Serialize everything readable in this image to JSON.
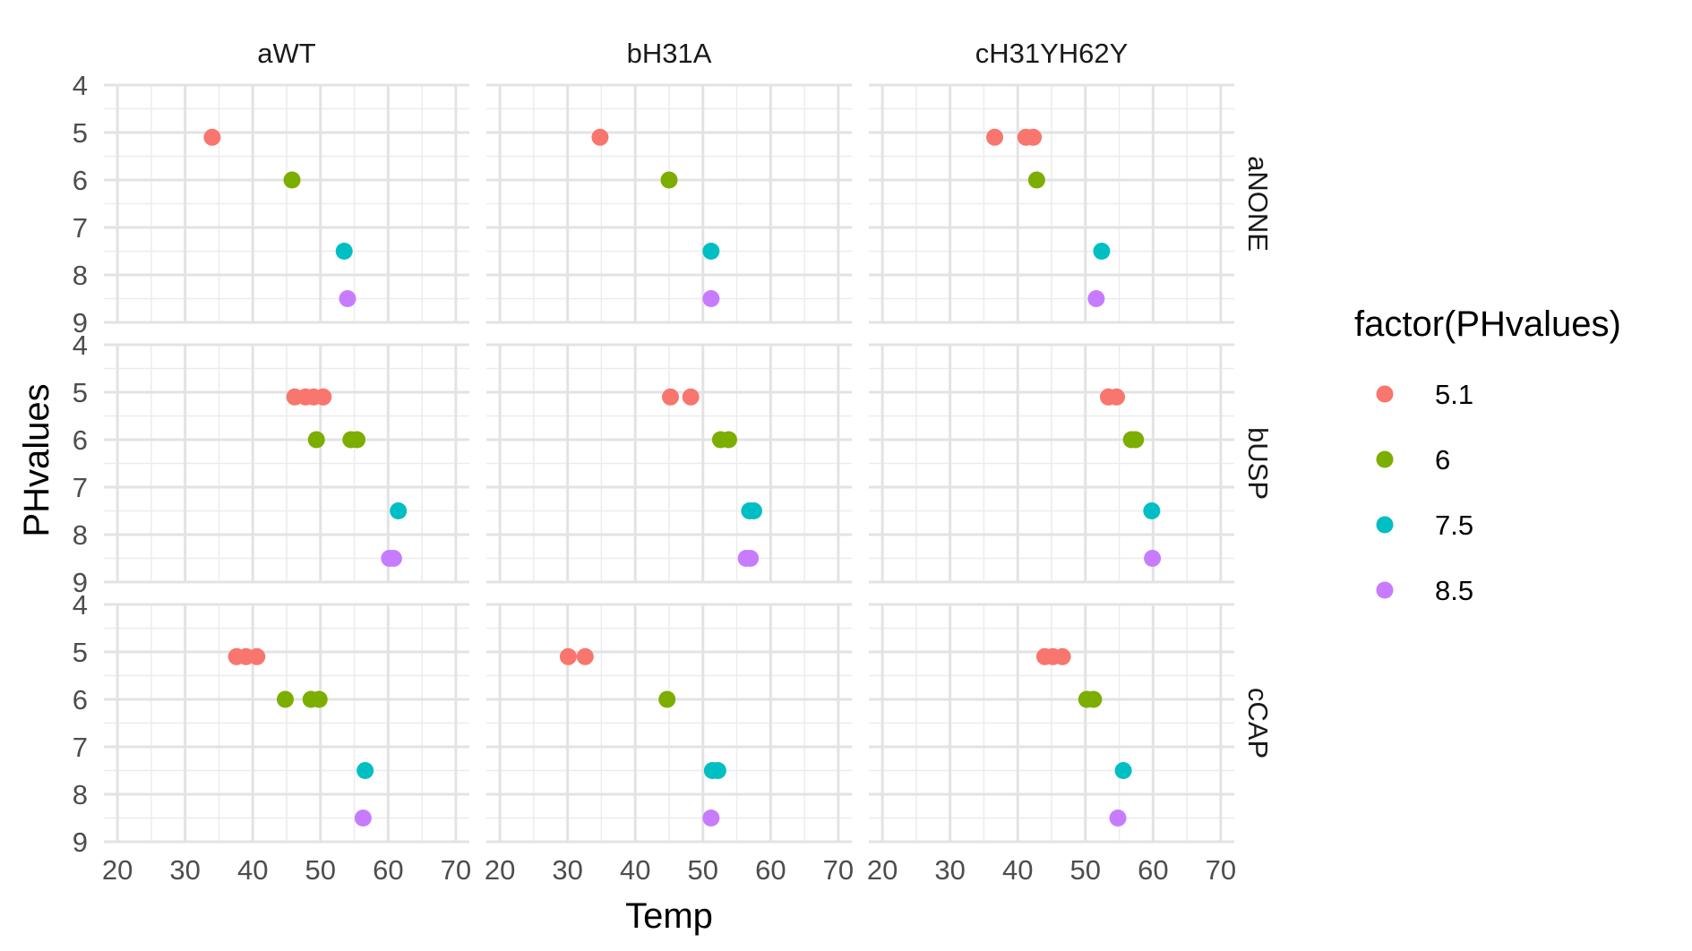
{
  "chart_data": {
    "type": "scatter",
    "facet_columns": [
      "aWT",
      "bH31A",
      "cH31YH62Y"
    ],
    "facet_rows": [
      "aNONE",
      "bUSP",
      "cCAP"
    ],
    "xlabel": "Temp",
    "ylabel": "PHvalues",
    "x_ticks": [
      "20",
      "30",
      "40",
      "50",
      "60",
      "70"
    ],
    "y_ticks": [
      "4",
      "5",
      "6",
      "7",
      "8",
      "9"
    ],
    "xlim": [
      18,
      72
    ],
    "ylim": [
      4,
      9
    ],
    "y_reversed": true,
    "grid": true,
    "legend": {
      "title": "factor(PHvalues)",
      "position": "right",
      "entries": [
        {
          "label": "5.1",
          "color": "#F8766D"
        },
        {
          "label": "6",
          "color": "#7CAE00"
        },
        {
          "label": "7.5",
          "color": "#00BFC4"
        },
        {
          "label": "8.5",
          "color": "#C77CFF"
        }
      ]
    },
    "panels": [
      {
        "col": "aWT",
        "row": "aNONE",
        "points": [
          {
            "x": 34,
            "y": 5.1,
            "group": "5.1"
          },
          {
            "x": 45.8,
            "y": 6,
            "group": "6"
          },
          {
            "x": 53.5,
            "y": 7.5,
            "group": "7.5"
          },
          {
            "x": 54,
            "y": 8.5,
            "group": "8.5"
          }
        ]
      },
      {
        "col": "bH31A",
        "row": "aNONE",
        "points": [
          {
            "x": 34.8,
            "y": 5.1,
            "group": "5.1"
          },
          {
            "x": 45,
            "y": 6,
            "group": "6"
          },
          {
            "x": 51.2,
            "y": 7.5,
            "group": "7.5"
          },
          {
            "x": 51.2,
            "y": 8.5,
            "group": "8.5"
          }
        ]
      },
      {
        "col": "cH31YH62Y",
        "row": "aNONE",
        "points": [
          {
            "x": 36.6,
            "y": 5.1,
            "group": "5.1"
          },
          {
            "x": 41.2,
            "y": 5.1,
            "group": "5.1"
          },
          {
            "x": 42.3,
            "y": 5.1,
            "group": "5.1"
          },
          {
            "x": 42.8,
            "y": 6,
            "group": "6"
          },
          {
            "x": 52.4,
            "y": 7.5,
            "group": "7.5"
          },
          {
            "x": 51.6,
            "y": 8.5,
            "group": "8.5"
          }
        ]
      },
      {
        "col": "aWT",
        "row": "bUSP",
        "points": [
          {
            "x": 46.2,
            "y": 5.1,
            "group": "5.1"
          },
          {
            "x": 47.8,
            "y": 5.1,
            "group": "5.1"
          },
          {
            "x": 49.0,
            "y": 5.1,
            "group": "5.1"
          },
          {
            "x": 50.4,
            "y": 5.1,
            "group": "5.1"
          },
          {
            "x": 49.4,
            "y": 6,
            "group": "6"
          },
          {
            "x": 54.5,
            "y": 6,
            "group": "6"
          },
          {
            "x": 55.4,
            "y": 6,
            "group": "6"
          },
          {
            "x": 61.5,
            "y": 7.5,
            "group": "7.5"
          },
          {
            "x": 60.2,
            "y": 8.5,
            "group": "8.5"
          },
          {
            "x": 60.8,
            "y": 8.5,
            "group": "8.5"
          }
        ]
      },
      {
        "col": "bH31A",
        "row": "bUSP",
        "points": [
          {
            "x": 45.2,
            "y": 5.1,
            "group": "5.1"
          },
          {
            "x": 48.2,
            "y": 5.1,
            "group": "5.1"
          },
          {
            "x": 52.6,
            "y": 6,
            "group": "6"
          },
          {
            "x": 53.8,
            "y": 6,
            "group": "6"
          },
          {
            "x": 56.9,
            "y": 7.5,
            "group": "7.5"
          },
          {
            "x": 57.5,
            "y": 7.5,
            "group": "7.5"
          },
          {
            "x": 56.4,
            "y": 8.5,
            "group": "8.5"
          },
          {
            "x": 57.0,
            "y": 8.5,
            "group": "8.5"
          }
        ]
      },
      {
        "col": "cH31YH62Y",
        "row": "bUSP",
        "points": [
          {
            "x": 53.4,
            "y": 5.1,
            "group": "5.1"
          },
          {
            "x": 54.6,
            "y": 5.1,
            "group": "5.1"
          },
          {
            "x": 56.8,
            "y": 6,
            "group": "6"
          },
          {
            "x": 57.4,
            "y": 6,
            "group": "6"
          },
          {
            "x": 59.8,
            "y": 7.5,
            "group": "7.5"
          },
          {
            "x": 59.9,
            "y": 8.5,
            "group": "8.5"
          }
        ]
      },
      {
        "col": "aWT",
        "row": "cCAP",
        "points": [
          {
            "x": 37.6,
            "y": 5.1,
            "group": "5.1"
          },
          {
            "x": 39.0,
            "y": 5.1,
            "group": "5.1"
          },
          {
            "x": 40.6,
            "y": 5.1,
            "group": "5.1"
          },
          {
            "x": 44.8,
            "y": 6,
            "group": "6"
          },
          {
            "x": 48.6,
            "y": 6,
            "group": "6"
          },
          {
            "x": 49.8,
            "y": 6,
            "group": "6"
          },
          {
            "x": 56.6,
            "y": 7.5,
            "group": "7.5"
          },
          {
            "x": 56.3,
            "y": 8.5,
            "group": "8.5"
          }
        ]
      },
      {
        "col": "bH31A",
        "row": "cCAP",
        "points": [
          {
            "x": 30.1,
            "y": 5.1,
            "group": "5.1"
          },
          {
            "x": 32.6,
            "y": 5.1,
            "group": "5.1"
          },
          {
            "x": 44.7,
            "y": 6,
            "group": "6"
          },
          {
            "x": 51.4,
            "y": 7.5,
            "group": "7.5"
          },
          {
            "x": 52.2,
            "y": 7.5,
            "group": "7.5"
          },
          {
            "x": 51.2,
            "y": 8.5,
            "group": "8.5"
          }
        ]
      },
      {
        "col": "cH31YH62Y",
        "row": "cCAP",
        "points": [
          {
            "x": 44.0,
            "y": 5.1,
            "group": "5.1"
          },
          {
            "x": 45.2,
            "y": 5.1,
            "group": "5.1"
          },
          {
            "x": 46.6,
            "y": 5.1,
            "group": "5.1"
          },
          {
            "x": 50.2,
            "y": 6,
            "group": "6"
          },
          {
            "x": 51.2,
            "y": 6,
            "group": "6"
          },
          {
            "x": 55.6,
            "y": 7.5,
            "group": "7.5"
          },
          {
            "x": 54.8,
            "y": 8.5,
            "group": "8.5"
          }
        ]
      }
    ]
  }
}
